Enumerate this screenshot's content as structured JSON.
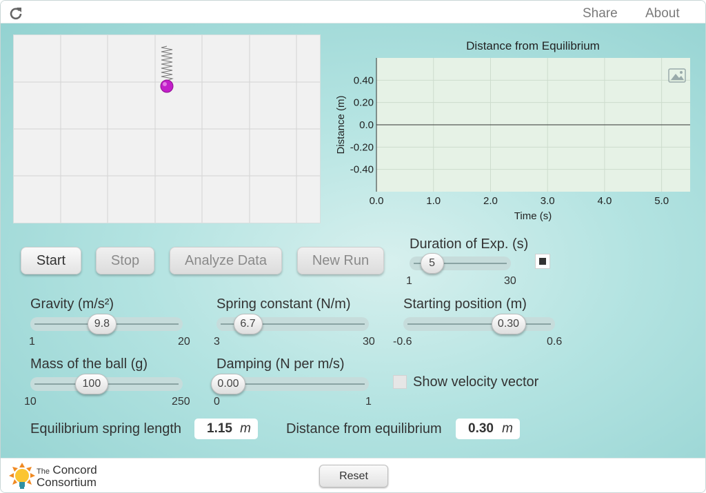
{
  "topbar": {
    "share_label": "Share",
    "about_label": "About"
  },
  "graph": {
    "title": "Distance from Equilibrium",
    "ylabel": "Distance (m)",
    "xlabel": "Time (s)",
    "y_ticks": [
      "0.40",
      "0.20",
      "0.0",
      "-0.20",
      "-0.40"
    ],
    "x_ticks": [
      "0.0",
      "1.0",
      "2.0",
      "3.0",
      "4.0",
      "5.0"
    ]
  },
  "chart_data": {
    "type": "line",
    "title": "Distance from Equilibrium",
    "xlabel": "Time (s)",
    "ylabel": "Distance (m)",
    "xlim": [
      0,
      5.5
    ],
    "ylim": [
      -0.6,
      0.6
    ],
    "x_ticks": [
      0,
      1,
      2,
      3,
      4,
      5
    ],
    "y_ticks": [
      0.4,
      0.2,
      0,
      -0.2,
      -0.4
    ],
    "grid": true,
    "series": []
  },
  "buttons": {
    "start": "Start",
    "stop": "Stop",
    "analyze": "Analyze Data",
    "new_run": "New Run"
  },
  "duration": {
    "label": "Duration of Exp. (s)",
    "value": "5",
    "min": "1",
    "max": "30",
    "fraction": 0.138
  },
  "gravity": {
    "label": "Gravity (m/s²)",
    "value": "9.8",
    "min": "1",
    "max": "20",
    "fraction": 0.463
  },
  "spring": {
    "label": "Spring constant (N/m)",
    "value": "6.7",
    "min": "3",
    "max": "30",
    "fraction": 0.137
  },
  "starting_position": {
    "label": "Starting position (m)",
    "value": "0.30",
    "min": "-0.6",
    "max": "0.6",
    "fraction": 0.75
  },
  "mass": {
    "label": "Mass of the ball (g)",
    "value": "100",
    "min": "10",
    "max": "250",
    "fraction": 0.375
  },
  "damping": {
    "label": "Damping (N per m/s)",
    "value": "0.00",
    "min": "0",
    "max": "1",
    "fraction": 0.0
  },
  "velocity": {
    "label": "Show velocity vector",
    "checked": false
  },
  "outputs": {
    "equilibrium_label": "Equilibrium spring length",
    "equilibrium_value": "1.15",
    "equilibrium_unit": "m",
    "distance_label": "Distance from equilibrium",
    "distance_value": "0.30",
    "distance_unit": "m"
  },
  "footer": {
    "logo_the": "The",
    "logo_line1": "Concord",
    "logo_line2": "Consortium",
    "reset_label": "Reset"
  },
  "colors": {
    "ball": "#c21fc9",
    "graph_bg": "#e6f2e6"
  }
}
